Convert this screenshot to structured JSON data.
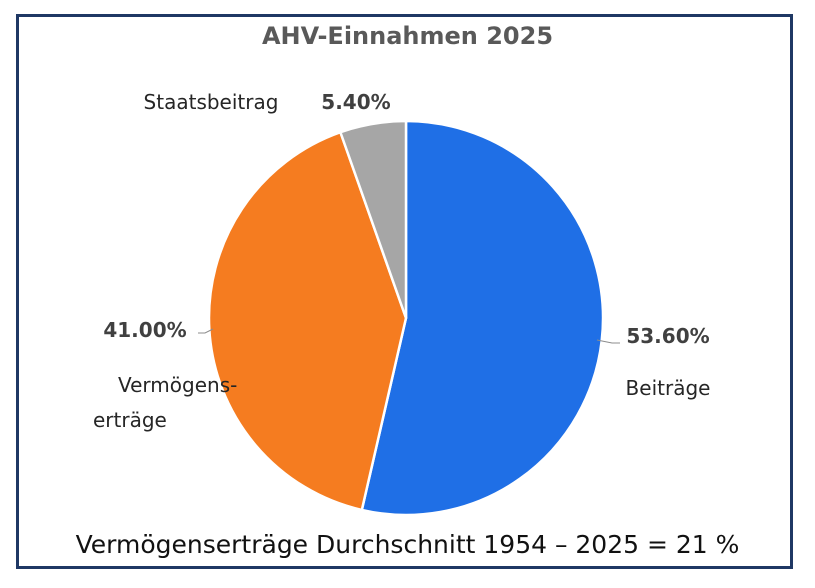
{
  "chart_data": {
    "type": "pie",
    "title": "AHV-Einnahmen 2025",
    "slices": [
      {
        "label": "Beiträge",
        "value": 53.6,
        "value_label": "53.60%",
        "color": "#1f6fe6"
      },
      {
        "label": "Vermögenserträge",
        "label_lines": [
          "Vermögens-",
          "erträge"
        ],
        "value": 41.0,
        "value_label": "41.00%",
        "color": "#f57c20"
      },
      {
        "label": "Staatsbeitrag",
        "value": 5.4,
        "value_label": "5.40%",
        "color": "#a6a6a6"
      }
    ],
    "start": "12 o'clock",
    "direction": "clockwise"
  },
  "footer": {
    "note": "Vermögenserträge Durchschnitt 1954 – 2025 = 21 %"
  }
}
